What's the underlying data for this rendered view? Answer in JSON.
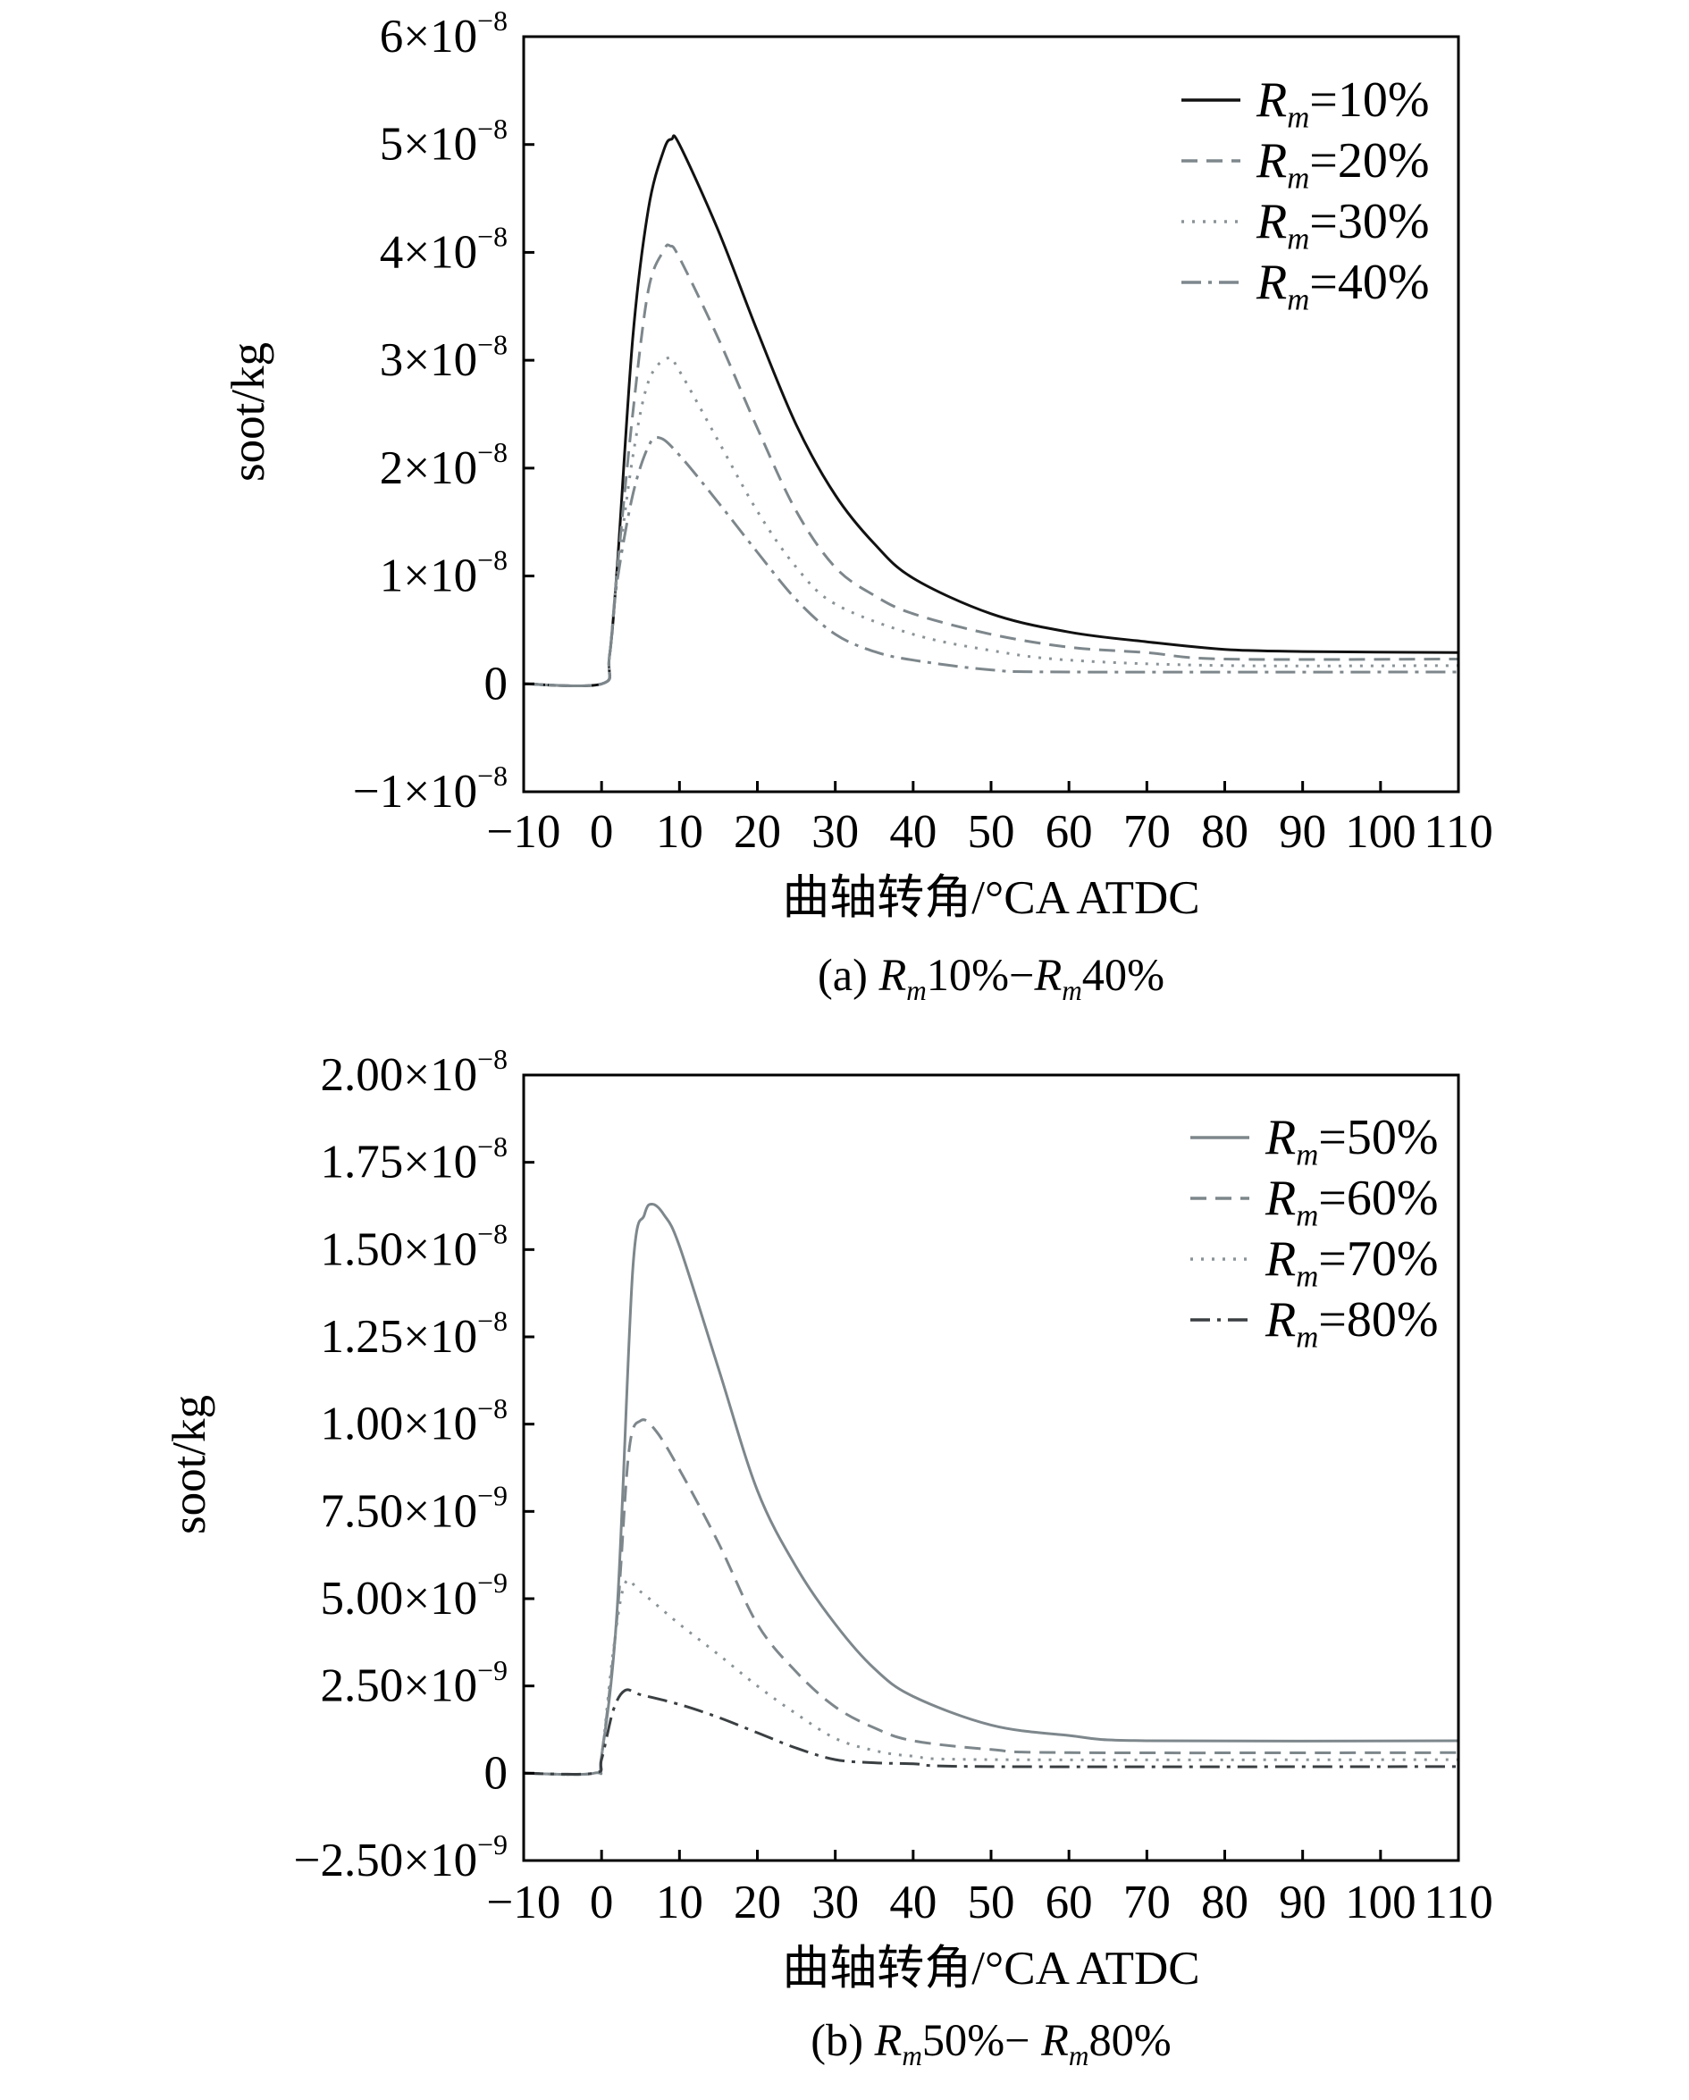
{
  "chart_data": [
    {
      "type": "line",
      "panel": "a",
      "caption": {
        "prefix": "(a) ",
        "parts": [
          {
            "sym": "R",
            "sub": "m",
            "text": "10%−"
          },
          {
            "sym": "R",
            "sub": "m",
            "text": "40%"
          }
        ]
      },
      "xlabel": "曲轴转角/°CA ATDC",
      "ylabel": "soot/kg",
      "xlim": [
        -10,
        110
      ],
      "ylim": [
        -1e-08,
        6e-08
      ],
      "xticks": [
        -10,
        0,
        10,
        20,
        30,
        40,
        50,
        60,
        70,
        80,
        90,
        100,
        110
      ],
      "yticks": [
        {
          "value": 6e-08,
          "mant": "6×10",
          "exp": "−8"
        },
        {
          "value": 5e-08,
          "mant": "5×10",
          "exp": "−8"
        },
        {
          "value": 4e-08,
          "mant": "4×10",
          "exp": "−8"
        },
        {
          "value": 3e-08,
          "mant": "3×10",
          "exp": "−8"
        },
        {
          "value": 2e-08,
          "mant": "2×10",
          "exp": "−8"
        },
        {
          "value": 1e-08,
          "mant": "1×10",
          "exp": "−8"
        },
        {
          "value": 0,
          "mant": "0",
          "exp": ""
        },
        {
          "value": -1e-08,
          "mant": "−1×10",
          "exp": "−8"
        }
      ],
      "legend_position": "top-right",
      "grid": false,
      "series": [
        {
          "name": {
            "sym": "R",
            "sub": "m",
            "text": "=10%"
          },
          "style": "solid",
          "color": "#111111",
          "points": [
            [
              -10,
              0
            ],
            [
              0,
              0
            ],
            [
              1,
              2.5e-09
            ],
            [
              2,
              1.08e-08
            ],
            [
              4,
              3.2e-08
            ],
            [
              6,
              4.4e-08
            ],
            [
              8,
              4.95e-08
            ],
            [
              9,
              5.05e-08
            ],
            [
              10,
              5e-08
            ],
            [
              15,
              4.2e-08
            ],
            [
              20,
              3.27e-08
            ],
            [
              25,
              2.4e-08
            ],
            [
              30,
              1.75e-08
            ],
            [
              35,
              1.3e-08
            ],
            [
              40,
              9.8e-09
            ],
            [
              50,
              6.5e-09
            ],
            [
              60,
              4.8e-09
            ],
            [
              70,
              3.9e-09
            ],
            [
              80,
              3.2e-09
            ],
            [
              90,
              3e-09
            ],
            [
              110,
              2.9e-09
            ]
          ]
        },
        {
          "name": {
            "sym": "R",
            "sub": "m",
            "text": "=20%"
          },
          "style": "dashed",
          "color": "#7d878c",
          "points": [
            [
              -10,
              0
            ],
            [
              0,
              0
            ],
            [
              1,
              2.5e-09
            ],
            [
              2,
              1.05e-08
            ],
            [
              4,
              2.5e-08
            ],
            [
              6,
              3.65e-08
            ],
            [
              8,
              4.02e-08
            ],
            [
              8.8,
              4.06e-08
            ],
            [
              10,
              3.95e-08
            ],
            [
              15,
              3.2e-08
            ],
            [
              20,
              2.37e-08
            ],
            [
              25,
              1.6e-08
            ],
            [
              30,
              1.08e-08
            ],
            [
              35,
              8.2e-09
            ],
            [
              40,
              6.5e-09
            ],
            [
              50,
              4.6e-09
            ],
            [
              60,
              3.4e-09
            ],
            [
              70,
              2.9e-09
            ],
            [
              80,
              2.3e-09
            ],
            [
              110,
              2.3e-09
            ]
          ]
        },
        {
          "name": {
            "sym": "R",
            "sub": "m",
            "text": "=30%"
          },
          "style": "dotted",
          "color": "#8a9397",
          "points": [
            [
              -10,
              0
            ],
            [
              0,
              0
            ],
            [
              1,
              2.5e-09
            ],
            [
              2,
              1e-08
            ],
            [
              4,
              2.1e-08
            ],
            [
              6,
              2.8e-08
            ],
            [
              8.5,
              3.02e-08
            ],
            [
              10,
              2.9e-08
            ],
            [
              15,
              2.25e-08
            ],
            [
              20,
              1.6e-08
            ],
            [
              25,
              1.08e-08
            ],
            [
              30,
              7.4e-09
            ],
            [
              40,
              4.6e-09
            ],
            [
              50,
              3.1e-09
            ],
            [
              60,
              2.2e-09
            ],
            [
              80,
              1.7e-09
            ],
            [
              110,
              1.7e-09
            ]
          ]
        },
        {
          "name": {
            "sym": "R",
            "sub": "m",
            "text": "=40%"
          },
          "style": "dashdot",
          "color": "#7d878c",
          "points": [
            [
              -10,
              0
            ],
            [
              0,
              0
            ],
            [
              1,
              2.5e-09
            ],
            [
              2,
              9.5e-09
            ],
            [
              4,
              1.75e-08
            ],
            [
              6,
              2.2e-08
            ],
            [
              7.5,
              2.28e-08
            ],
            [
              10,
              2.12e-08
            ],
            [
              15,
              1.68e-08
            ],
            [
              20,
              1.22e-08
            ],
            [
              25,
              7.8e-09
            ],
            [
              30,
              4.6e-09
            ],
            [
              35,
              3e-09
            ],
            [
              40,
              2.2e-09
            ],
            [
              50,
              1.3e-09
            ],
            [
              60,
              1.1e-09
            ],
            [
              110,
              1.1e-09
            ]
          ]
        }
      ]
    },
    {
      "type": "line",
      "panel": "b",
      "caption": {
        "prefix": "(b) ",
        "parts": [
          {
            "sym": "R",
            "sub": "m",
            "text": "50%− "
          },
          {
            "sym": "R",
            "sub": "m",
            "text": "80%"
          }
        ]
      },
      "xlabel": "曲轴转角/°CA ATDC",
      "ylabel": "soot/kg",
      "xlim": [
        -10,
        110
      ],
      "ylim": [
        -2.5e-09,
        2e-08
      ],
      "xticks": [
        -10,
        0,
        10,
        20,
        30,
        40,
        50,
        60,
        70,
        80,
        90,
        100,
        110
      ],
      "yticks": [
        {
          "value": 2e-08,
          "mant": "2.00×10",
          "exp": "−8"
        },
        {
          "value": 1.75e-08,
          "mant": "1.75×10",
          "exp": "−8"
        },
        {
          "value": 1.5e-08,
          "mant": "1.50×10",
          "exp": "−8"
        },
        {
          "value": 1.25e-08,
          "mant": "1.25×10",
          "exp": "−8"
        },
        {
          "value": 1e-08,
          "mant": "1.00×10",
          "exp": "−8"
        },
        {
          "value": 7.5e-09,
          "mant": "7.50×10",
          "exp": "−9"
        },
        {
          "value": 5e-09,
          "mant": "5.00×10",
          "exp": "−9"
        },
        {
          "value": 2.5e-09,
          "mant": "2.50×10",
          "exp": "−9"
        },
        {
          "value": 0,
          "mant": "0",
          "exp": ""
        },
        {
          "value": -2.5e-09,
          "mant": "−2.50×10",
          "exp": "−9"
        }
      ],
      "legend_position": "top-right",
      "grid": false,
      "series": [
        {
          "name": {
            "sym": "R",
            "sub": "m",
            "text": "=50%"
          },
          "style": "solid",
          "color": "#7d878c",
          "points": [
            [
              -10,
              0
            ],
            [
              -1,
              0
            ],
            [
              0,
              5e-10
            ],
            [
              2,
              4.7e-09
            ],
            [
              4,
              1.44e-08
            ],
            [
              5.5,
              1.6e-08
            ],
            [
              6.5,
              1.63e-08
            ],
            [
              8,
              1.6e-08
            ],
            [
              10,
              1.51e-08
            ],
            [
              15,
              1.16e-08
            ],
            [
              20,
              8.1e-09
            ],
            [
              25,
              5.9e-09
            ],
            [
              30,
              4.27e-09
            ],
            [
              35,
              3e-09
            ],
            [
              40,
              2.2e-09
            ],
            [
              50,
              1.38e-09
            ],
            [
              60,
              1.08e-09
            ],
            [
              70,
              9.3e-10
            ],
            [
              110,
              9.3e-10
            ]
          ]
        },
        {
          "name": {
            "sym": "R",
            "sub": "m",
            "text": "=60%"
          },
          "style": "dashed",
          "color": "#7d878c",
          "points": [
            [
              -10,
              0
            ],
            [
              -1,
              0
            ],
            [
              0,
              5e-10
            ],
            [
              2,
              4.5e-09
            ],
            [
              3.5,
              9.2e-09
            ],
            [
              5,
              1.01e-08
            ],
            [
              7,
              9.8e-09
            ],
            [
              10,
              8.7e-09
            ],
            [
              15,
              6.6e-09
            ],
            [
              20,
              4.27e-09
            ],
            [
              25,
              2.9e-09
            ],
            [
              30,
              1.9e-09
            ],
            [
              35,
              1.3e-09
            ],
            [
              40,
              9.3e-10
            ],
            [
              50,
              6.8e-10
            ],
            [
              60,
              5.9e-10
            ],
            [
              110,
              5.9e-10
            ]
          ]
        },
        {
          "name": {
            "sym": "R",
            "sub": "m",
            "text": "=70%"
          },
          "style": "dotted",
          "color": "#8a9397",
          "points": [
            [
              -10,
              0
            ],
            [
              -1,
              0
            ],
            [
              0,
              5e-10
            ],
            [
              1.5,
              3.5e-09
            ],
            [
              3,
              5.43e-09
            ],
            [
              5,
              5.2e-09
            ],
            [
              10,
              4.27e-09
            ],
            [
              15,
              3.4e-09
            ],
            [
              20,
              2.5e-09
            ],
            [
              25,
              1.7e-09
            ],
            [
              30,
              1e-09
            ],
            [
              35,
              6.5e-10
            ],
            [
              40,
              4.9e-10
            ],
            [
              50,
              3.9e-10
            ],
            [
              110,
              3.9e-10
            ]
          ]
        },
        {
          "name": {
            "sym": "R",
            "sub": "m",
            "text": "=80%"
          },
          "style": "dashdot",
          "color": "#3a3f42",
          "points": [
            [
              -10,
              0
            ],
            [
              -1,
              0
            ],
            [
              0,
              4e-10
            ],
            [
              1.5,
              1.8e-09
            ],
            [
              3,
              2.37e-09
            ],
            [
              5,
              2.25e-09
            ],
            [
              10,
              1.97e-09
            ],
            [
              15,
              1.6e-09
            ],
            [
              20,
              1.16e-09
            ],
            [
              25,
              7.2e-10
            ],
            [
              30,
              3.9e-10
            ],
            [
              35,
              3e-10
            ],
            [
              40,
              2.7e-10
            ],
            [
              50,
              1.9e-10
            ],
            [
              110,
              1.9e-10
            ]
          ]
        }
      ]
    }
  ]
}
